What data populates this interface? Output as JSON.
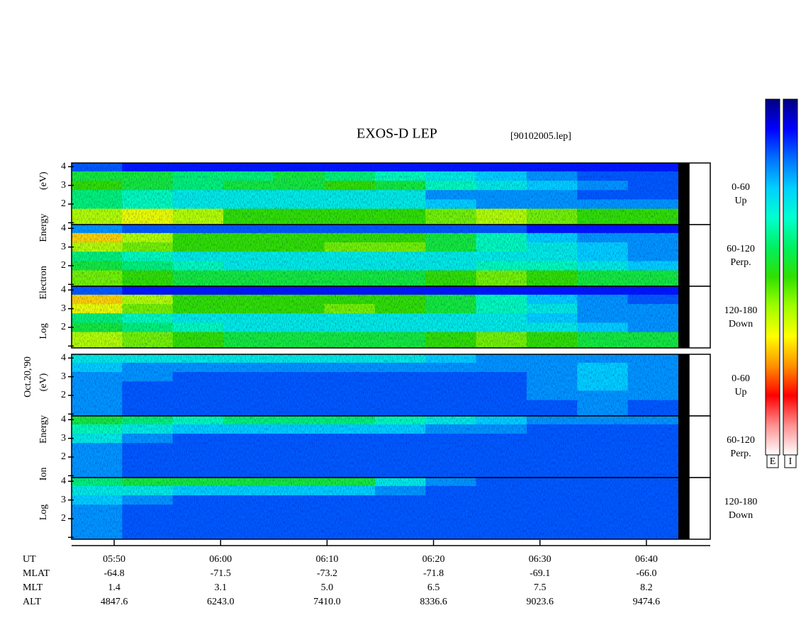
{
  "chart_data": {
    "type": "spectrogram",
    "title": "EXOS-D LEP",
    "file_label": "[90102005.lep]",
    "date_label": "Oct.20,'90",
    "xlabel": "UT",
    "xlim": [
      346,
      406
    ],
    "xticks": [
      {
        "value": 350,
        "label": "05:50"
      },
      {
        "value": 360,
        "label": "06:00"
      },
      {
        "value": 370,
        "label": "06:10"
      },
      {
        "value": 380,
        "label": "06:20"
      },
      {
        "value": 390,
        "label": "06:30"
      },
      {
        "value": 400,
        "label": "06:40"
      }
    ],
    "ylim": [
      0.9,
      4.2
    ],
    "yticks": [
      2,
      3,
      4
    ],
    "minor_yticks": [
      1
    ],
    "time_bins": [
      346,
      350.75,
      355.5,
      360.25,
      365,
      369.75,
      374.5,
      379.25,
      384,
      388.75,
      393.5,
      398.25,
      403
    ],
    "energy_bins": [
      4.2,
      3.75,
      3.25,
      2.75,
      2.25,
      1.75,
      0.9
    ],
    "colorscale": [
      "#000080",
      "#0000ff",
      "#0070ff",
      "#00d0ff",
      "#00ffd0",
      "#00f060",
      "#30e000",
      "#a0ff00",
      "#ffff00",
      "#ff9000",
      "#ff0000",
      "#ff9090",
      "#ffffff"
    ],
    "colorbar_labels": [
      "E",
      "I"
    ],
    "groups": [
      {
        "ylabel": "Log  Electron  Energy (eV)",
        "panels": [
          0,
          1,
          2
        ]
      },
      {
        "ylabel": "Log  Ion  Energy (eV)",
        "panels": [
          3,
          4,
          5
        ]
      }
    ],
    "panels": [
      {
        "name": "0-60",
        "direction": "Up",
        "values": [
          [
            0.15,
            0.1,
            0.1,
            0.1,
            0.1,
            0.1,
            0.1,
            0.1,
            0.1,
            0.1,
            0.1,
            0.1
          ],
          [
            0.45,
            0.45,
            0.4,
            0.4,
            0.45,
            0.4,
            0.35,
            0.3,
            0.25,
            0.2,
            0.15,
            0.15
          ],
          [
            0.5,
            0.45,
            0.4,
            0.45,
            0.45,
            0.5,
            0.45,
            0.35,
            0.3,
            0.25,
            0.2,
            0.15
          ],
          [
            0.4,
            0.35,
            0.3,
            0.3,
            0.3,
            0.3,
            0.3,
            0.2,
            0.2,
            0.2,
            0.15,
            0.15
          ],
          [
            0.4,
            0.35,
            0.3,
            0.3,
            0.3,
            0.3,
            0.3,
            0.25,
            0.2,
            0.2,
            0.2,
            0.2
          ],
          [
            0.6,
            0.65,
            0.6,
            0.5,
            0.5,
            0.5,
            0.5,
            0.55,
            0.6,
            0.55,
            0.5,
            0.5
          ]
        ]
      },
      {
        "name": "60-120",
        "direction": "Perp.",
        "values": [
          [
            0.2,
            0.15,
            0.15,
            0.15,
            0.15,
            0.15,
            0.15,
            0.15,
            0.15,
            0.1,
            0.1,
            0.1
          ],
          [
            0.7,
            0.6,
            0.5,
            0.5,
            0.5,
            0.5,
            0.5,
            0.45,
            0.35,
            0.25,
            0.2,
            0.2
          ],
          [
            0.6,
            0.55,
            0.5,
            0.5,
            0.5,
            0.55,
            0.55,
            0.45,
            0.35,
            0.3,
            0.25,
            0.2
          ],
          [
            0.4,
            0.35,
            0.3,
            0.3,
            0.3,
            0.3,
            0.3,
            0.3,
            0.3,
            0.3,
            0.25,
            0.2
          ],
          [
            0.45,
            0.4,
            0.35,
            0.3,
            0.3,
            0.3,
            0.3,
            0.3,
            0.35,
            0.35,
            0.3,
            0.25
          ],
          [
            0.55,
            0.5,
            0.45,
            0.45,
            0.45,
            0.45,
            0.45,
            0.5,
            0.55,
            0.5,
            0.45,
            0.45
          ]
        ]
      },
      {
        "name": "120-180",
        "direction": "Down",
        "values": [
          [
            0.15,
            0.1,
            0.1,
            0.1,
            0.1,
            0.1,
            0.1,
            0.1,
            0.1,
            0.1,
            0.1,
            0.1
          ],
          [
            0.7,
            0.6,
            0.5,
            0.5,
            0.5,
            0.5,
            0.5,
            0.45,
            0.35,
            0.25,
            0.2,
            0.15
          ],
          [
            0.65,
            0.55,
            0.5,
            0.5,
            0.5,
            0.55,
            0.5,
            0.45,
            0.35,
            0.3,
            0.2,
            0.2
          ],
          [
            0.4,
            0.35,
            0.3,
            0.3,
            0.3,
            0.3,
            0.3,
            0.3,
            0.3,
            0.25,
            0.2,
            0.2
          ],
          [
            0.45,
            0.4,
            0.35,
            0.3,
            0.3,
            0.3,
            0.3,
            0.3,
            0.3,
            0.3,
            0.25,
            0.2
          ],
          [
            0.6,
            0.55,
            0.5,
            0.45,
            0.45,
            0.45,
            0.45,
            0.5,
            0.55,
            0.5,
            0.45,
            0.45
          ]
        ]
      },
      {
        "name": "0-60",
        "direction": "Up",
        "values": [
          [
            0.3,
            0.3,
            0.3,
            0.3,
            0.3,
            0.3,
            0.3,
            0.25,
            0.2,
            0.2,
            0.2,
            0.2
          ],
          [
            0.25,
            0.2,
            0.2,
            0.2,
            0.2,
            0.2,
            0.2,
            0.2,
            0.2,
            0.2,
            0.25,
            0.2
          ],
          [
            0.2,
            0.2,
            0.15,
            0.15,
            0.15,
            0.15,
            0.15,
            0.15,
            0.15,
            0.2,
            0.25,
            0.2
          ],
          [
            0.2,
            0.15,
            0.15,
            0.15,
            0.15,
            0.15,
            0.15,
            0.15,
            0.15,
            0.2,
            0.25,
            0.2
          ],
          [
            0.2,
            0.15,
            0.15,
            0.15,
            0.15,
            0.15,
            0.15,
            0.15,
            0.15,
            0.2,
            0.2,
            0.2
          ],
          [
            0.2,
            0.15,
            0.15,
            0.15,
            0.15,
            0.15,
            0.15,
            0.15,
            0.15,
            0.15,
            0.2,
            0.15
          ]
        ]
      },
      {
        "name": "60-120",
        "direction": "Perp.",
        "values": [
          [
            0.45,
            0.4,
            0.35,
            0.4,
            0.4,
            0.4,
            0.35,
            0.3,
            0.25,
            0.2,
            0.2,
            0.2
          ],
          [
            0.35,
            0.3,
            0.25,
            0.25,
            0.25,
            0.25,
            0.25,
            0.2,
            0.2,
            0.15,
            0.15,
            0.15
          ],
          [
            0.3,
            0.2,
            0.15,
            0.15,
            0.15,
            0.15,
            0.15,
            0.15,
            0.15,
            0.15,
            0.15,
            0.15
          ],
          [
            0.2,
            0.15,
            0.15,
            0.15,
            0.15,
            0.15,
            0.15,
            0.15,
            0.15,
            0.15,
            0.15,
            0.15
          ],
          [
            0.2,
            0.15,
            0.15,
            0.15,
            0.15,
            0.15,
            0.15,
            0.15,
            0.15,
            0.15,
            0.15,
            0.15
          ],
          [
            0.2,
            0.15,
            0.15,
            0.15,
            0.15,
            0.15,
            0.15,
            0.15,
            0.15,
            0.15,
            0.15,
            0.15
          ]
        ]
      },
      {
        "name": "120-180",
        "direction": "Down",
        "values": [
          [
            0.4,
            0.45,
            0.45,
            0.45,
            0.45,
            0.45,
            0.3,
            0.2,
            0.15,
            0.15,
            0.15,
            0.15
          ],
          [
            0.3,
            0.3,
            0.25,
            0.25,
            0.25,
            0.25,
            0.2,
            0.15,
            0.15,
            0.15,
            0.15,
            0.15
          ],
          [
            0.25,
            0.2,
            0.15,
            0.15,
            0.15,
            0.15,
            0.15,
            0.15,
            0.15,
            0.15,
            0.15,
            0.15
          ],
          [
            0.2,
            0.15,
            0.15,
            0.15,
            0.15,
            0.15,
            0.15,
            0.15,
            0.15,
            0.15,
            0.15,
            0.15
          ],
          [
            0.2,
            0.15,
            0.15,
            0.15,
            0.15,
            0.15,
            0.15,
            0.15,
            0.15,
            0.15,
            0.15,
            0.15
          ],
          [
            0.2,
            0.15,
            0.15,
            0.15,
            0.15,
            0.15,
            0.15,
            0.15,
            0.15,
            0.15,
            0.15,
            0.15
          ]
        ]
      }
    ],
    "ephemeris": [
      {
        "name": "MLAT",
        "values": [
          -64.8,
          -71.5,
          -73.2,
          -71.8,
          -69.1,
          -66
        ],
        "value_labels": [
          "-64.8",
          "-71.5",
          "-73.2",
          "-71.8",
          "-69.1",
          "-66.0"
        ]
      },
      {
        "name": "MLT",
        "values": [
          1.4,
          3.1,
          5,
          6.5,
          7.5,
          8.2
        ],
        "value_labels": [
          "1.4",
          "3.1",
          "5.0",
          "6.5",
          "7.5",
          "8.2"
        ]
      },
      {
        "name": "ALT",
        "values": [
          4847.6,
          6243,
          7410,
          8336.6,
          9023.6,
          9474.6
        ],
        "value_labels": [
          "4847.6",
          "6243.0",
          "7410.0",
          "8336.6",
          "9023.6",
          "9474.6"
        ]
      }
    ]
  }
}
